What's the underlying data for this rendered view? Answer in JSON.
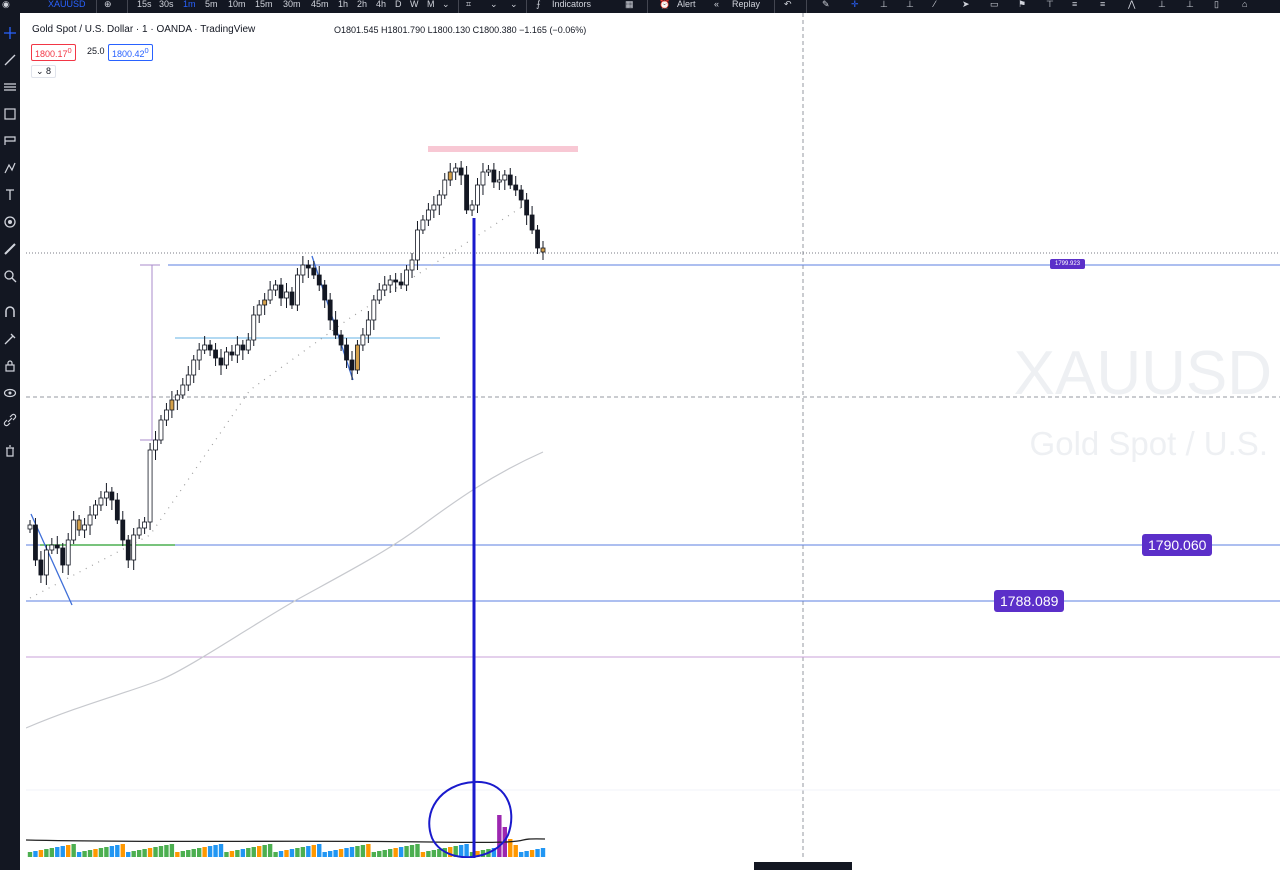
{
  "toolbar": {
    "symbol": "XAUUSD",
    "timeframes": [
      "15s",
      "30s",
      "1m",
      "5m",
      "10m",
      "15m",
      "30m",
      "45m",
      "1h",
      "2h",
      "4h",
      "D",
      "W",
      "M"
    ],
    "active_timeframe": "1m",
    "indicators_label": "Indicators",
    "alert_label": "Alert",
    "replay_label": "Replay"
  },
  "legend": {
    "title": "Gold Spot / U.S. Dollar · 1 · OANDA · TradingView",
    "ohlc": "O1801.545 H1801.790 L1800.130 C1800.380 −1.165 (−0.06%)"
  },
  "trade": {
    "sell_price": "1800.17",
    "sell_suffix": "0",
    "spread": "25.0",
    "buy_price": "1800.42",
    "buy_suffix": "0"
  },
  "indicator_count": "8",
  "watermark": {
    "symbol": "XAUUSD",
    "description": "Gold Spot / U.S."
  },
  "levels": {
    "upper": "1799.923",
    "mid": "1790.060",
    "low": "1788.089"
  },
  "colors": {
    "toolbar_bg": "#131722",
    "level_label": "#5b2fc9",
    "bull_volume": "#4caf50",
    "bear_volume": "#2196f3",
    "orange_volume": "#ff9800",
    "spike_volume": "#9c27b0",
    "annotation_blue": "#1a1acc",
    "supply_zone": "#f8c8d4"
  }
}
